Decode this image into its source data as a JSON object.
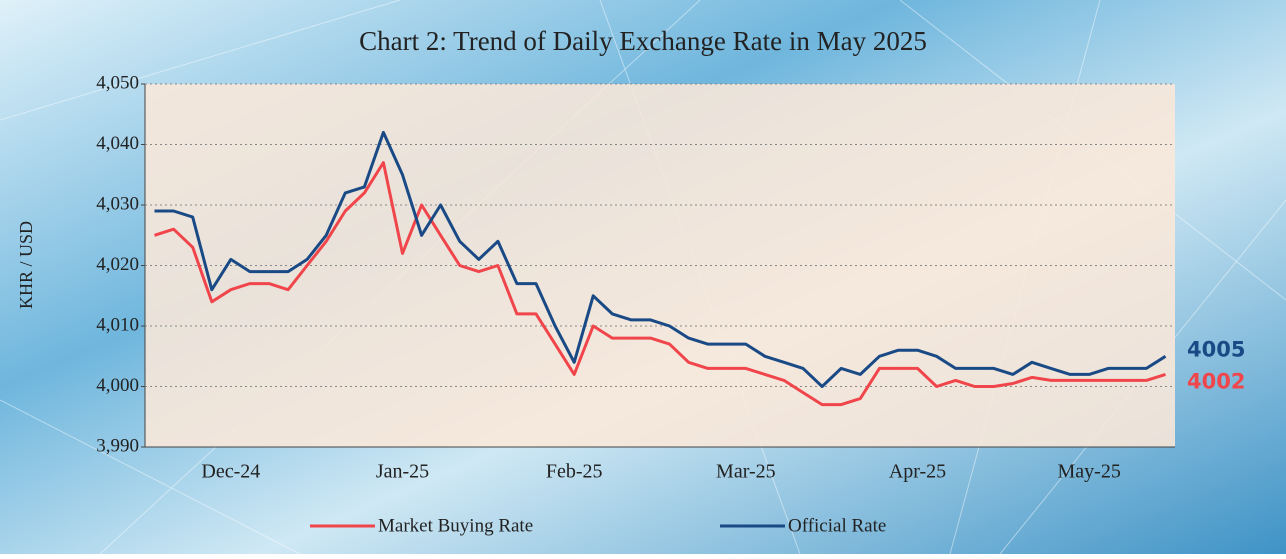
{
  "chart_data": {
    "type": "line",
    "title": "Chart 2: Trend of Daily Exchange Rate in May 2025",
    "y_label": "KHR / USD",
    "categories": [
      null,
      null,
      null,
      null,
      "Dec-24",
      null,
      null,
      null,
      null,
      null,
      null,
      null,
      null,
      "Jan-25",
      null,
      null,
      null,
      null,
      null,
      null,
      null,
      null,
      "Feb-25",
      null,
      null,
      null,
      null,
      null,
      null,
      null,
      null,
      "Mar-25",
      null,
      null,
      null,
      null,
      null,
      null,
      null,
      null,
      "Apr-25",
      null,
      null,
      null,
      null,
      null,
      null,
      null,
      null,
      "May-25",
      null,
      null,
      null,
      null
    ],
    "series": [
      {
        "name": "Market Buying Rate",
        "color": "#f0464b",
        "end_label": "4002",
        "values": [
          4025,
          4026,
          4023,
          4014,
          4016,
          4017,
          4017,
          4016,
          4020,
          4024,
          4029,
          4032,
          4037,
          4022,
          4030,
          4025,
          4020,
          4019,
          4020,
          4012,
          4012,
          4007,
          4002,
          4010,
          4008,
          4008,
          4008,
          4007,
          4004,
          4003,
          4003,
          4003,
          4002,
          4001,
          3999,
          3997,
          3997,
          3998,
          4003,
          4003,
          4003,
          4000,
          4001,
          4000,
          4000,
          4000.5,
          4001.5,
          4001,
          4001,
          4001,
          4001,
          4001,
          4001,
          4002
        ]
      },
      {
        "name": "Official Rate",
        "color": "#1a4a85",
        "end_label": "4005",
        "values": [
          4029,
          4029,
          4028,
          4016,
          4021,
          4019,
          4019,
          4019,
          4021,
          4025,
          4032,
          4033,
          4042,
          4035,
          4025,
          4030,
          4024,
          4021,
          4024,
          4017,
          4017,
          4010,
          4004,
          4015,
          4012,
          4011,
          4011,
          4010,
          4008,
          4007,
          4007,
          4007,
          4005,
          4004,
          4003,
          4000,
          4003,
          4002,
          4005,
          4006,
          4006,
          4005,
          4003,
          4003,
          4003,
          4002,
          4004,
          4003,
          4002,
          4002,
          4003,
          4003,
          4003,
          4005
        ]
      }
    ],
    "ylim": [
      3990,
      4050
    ],
    "yticks": [
      {
        "value": 3990,
        "label": "3,990"
      },
      {
        "value": 4000,
        "label": "4,000"
      },
      {
        "value": 4010,
        "label": "4,010"
      },
      {
        "value": 4020,
        "label": "4,020"
      },
      {
        "value": 4030,
        "label": "4,030"
      },
      {
        "value": 4040,
        "label": "4,040"
      },
      {
        "value": 4050,
        "label": "4,050"
      }
    ],
    "grid": true
  }
}
